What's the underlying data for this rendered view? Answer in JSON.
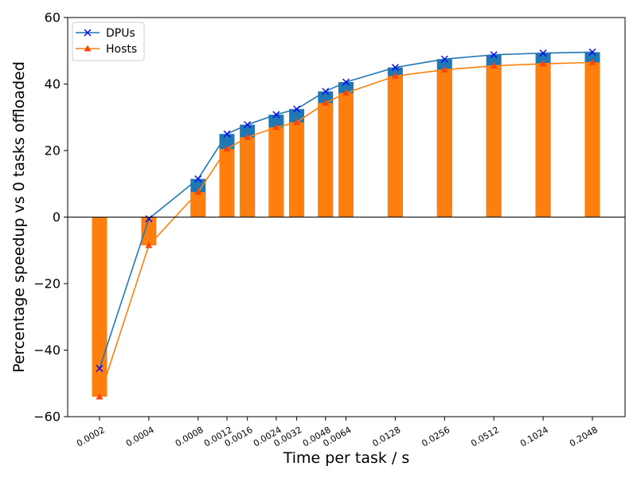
{
  "chart_data": {
    "type": "bar",
    "xlabel": "Time per task / s",
    "ylabel": "Percentage speedup vs 0 tasks offloaded",
    "ylim": [
      -60,
      60
    ],
    "yticks": [
      "−60",
      "−40",
      "−20",
      "0",
      "20",
      "40",
      "60"
    ],
    "ytick_values": [
      -60,
      -40,
      -20,
      0,
      20,
      40,
      60
    ],
    "categories": [
      "0.0002",
      "0.0004",
      "0.0008",
      "0.0012",
      "0.0016",
      "0.0024",
      "0.0032",
      "0.0048",
      "0.0064",
      "0.0128",
      "0.0256",
      "0.0512",
      "0.1024",
      "0.2048"
    ],
    "x": [
      0.0002,
      0.0004,
      0.0008,
      0.0012,
      0.0016,
      0.0024,
      0.0032,
      0.0048,
      0.0064,
      0.0128,
      0.0256,
      0.0512,
      0.1024,
      0.2048
    ],
    "x_scale": "log",
    "grid": false,
    "legend_position": "top-left",
    "series": [
      {
        "name": "DPUs",
        "color": "#1f77b4",
        "marker": "x",
        "marker_color": "#0000ff",
        "values": [
          -45.5,
          -0.5,
          11.5,
          25.0,
          27.8,
          30.8,
          32.5,
          37.8,
          40.6,
          45.0,
          47.5,
          48.8,
          49.3,
          49.6
        ]
      },
      {
        "name": "Hosts",
        "color": "#ff7f0e",
        "marker": "triangle",
        "marker_color": "#ff4500",
        "values": [
          -54.0,
          -8.5,
          7.5,
          20.5,
          24.0,
          27.0,
          28.5,
          34.3,
          37.3,
          42.4,
          44.3,
          45.5,
          46.1,
          46.5
        ]
      }
    ]
  }
}
